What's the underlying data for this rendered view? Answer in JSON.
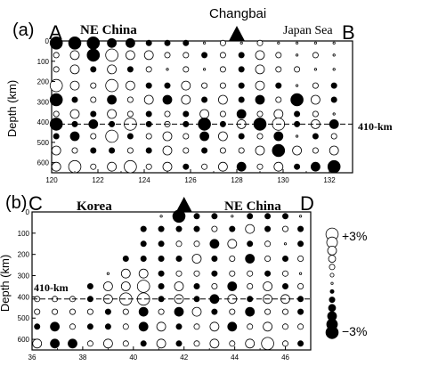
{
  "figure": {
    "colors": {
      "high": "#ffffff",
      "low": "#000000",
      "frame": "#000000",
      "ref_line": "#333333"
    }
  },
  "chart_data": [
    {
      "type": "scatter",
      "panel_label": "(a)",
      "start_label": "A",
      "end_label": "B",
      "region_labels": [
        "NE China",
        "Japan Sea"
      ],
      "volcano_label": "Changbai",
      "volcano_x": 128,
      "ylabel": "Depth (km)",
      "xlim": [
        120,
        133
      ],
      "ylim": [
        0,
        650
      ],
      "xticks": [
        "120",
        "122",
        "124",
        "126",
        "128",
        "130",
        "132"
      ],
      "xtick_values": [
        120,
        122,
        124,
        126,
        128,
        130,
        132
      ],
      "yticks": [
        "0",
        "100",
        "200",
        "300",
        "400",
        "500",
        "600"
      ],
      "ytick_values": [
        0,
        100,
        200,
        300,
        400,
        500,
        600
      ],
      "ref_line": {
        "depth": 410,
        "label": "410-km"
      },
      "x": [
        120.2,
        121.0,
        121.8,
        122.6,
        123.4,
        124.2,
        125.0,
        125.8,
        126.6,
        127.4,
        128.2,
        129.0,
        129.8,
        130.6,
        131.4,
        132.2
      ],
      "depths": [
        10,
        70,
        140,
        220,
        290,
        360,
        410,
        470,
        540,
        620
      ],
      "values": [
        [
          -3,
          -3,
          -3,
          -2,
          -2,
          -1,
          -1,
          -1,
          0,
          1,
          0,
          1,
          0,
          0,
          0,
          0
        ],
        [
          1,
          2,
          -3,
          3,
          2,
          2,
          1,
          1,
          -1,
          1,
          -1,
          2,
          1,
          0,
          1,
          0
        ],
        [
          1,
          2,
          -1,
          2,
          -1,
          1,
          0,
          1,
          0,
          1,
          -1,
          2,
          1,
          1,
          0,
          0
        ],
        [
          3,
          2,
          1,
          3,
          2,
          -1,
          -1,
          2,
          1,
          1,
          -1,
          2,
          -1,
          0,
          1,
          -1
        ],
        [
          -3,
          -1,
          1,
          -2,
          1,
          2,
          -2,
          2,
          -1,
          2,
          -1,
          -2,
          1,
          -3,
          2,
          -1
        ],
        [
          1,
          2,
          -1,
          2,
          1,
          -1,
          1,
          -1,
          2,
          1,
          -2,
          1,
          2,
          -1,
          1,
          0
        ],
        [
          -3,
          -1,
          -2,
          -1,
          3,
          -1,
          1,
          -1,
          -3,
          -1,
          2,
          -3,
          3,
          -1,
          2,
          -2
        ],
        [
          -1,
          -2,
          1,
          3,
          -1,
          1,
          2,
          1,
          -2,
          2,
          -1,
          1,
          -2,
          0,
          -1,
          1
        ],
        [
          2,
          1,
          -1,
          -1,
          1,
          -1,
          2,
          1,
          -1,
          1,
          1,
          2,
          -3,
          2,
          1,
          2
        ],
        [
          2,
          3,
          1,
          2,
          3,
          1,
          2,
          -1,
          1,
          2,
          -2,
          1,
          2,
          -1,
          -2,
          -3
        ]
      ]
    },
    {
      "type": "scatter",
      "panel_label": "(b)",
      "start_label": "C",
      "end_label": "D",
      "region_labels": [
        "Korea",
        "NE China"
      ],
      "volcano_x": 42,
      "ylabel": "Depth (km)",
      "xlim": [
        36,
        47
      ],
      "ylim": [
        0,
        650
      ],
      "xticks": [
        "36",
        "38",
        "40",
        "42",
        "44",
        "46"
      ],
      "xtick_values": [
        36,
        38,
        40,
        42,
        44,
        46
      ],
      "yticks": [
        "0",
        "100",
        "200",
        "300",
        "400",
        "500",
        "600"
      ],
      "ytick_values": [
        0,
        100,
        200,
        300,
        400,
        500,
        600
      ],
      "ref_line": {
        "depth": 410,
        "label": "410-km"
      },
      "x": [
        36.2,
        36.9,
        37.6,
        38.3,
        39.0,
        39.7,
        40.4,
        41.1,
        41.8,
        42.5,
        43.2,
        43.9,
        44.6,
        45.3,
        46.0,
        46.6
      ],
      "depths": [
        20,
        80,
        150,
        220,
        290,
        350,
        410,
        470,
        540,
        620
      ],
      "values": [
        [
          null,
          null,
          null,
          null,
          null,
          null,
          null,
          0,
          -3,
          -1,
          -1,
          0,
          -1,
          -1,
          -1,
          0
        ],
        [
          null,
          null,
          null,
          null,
          null,
          null,
          -1,
          -1,
          -1,
          -1,
          1,
          -1,
          2,
          -1,
          1,
          -1
        ],
        [
          null,
          null,
          null,
          null,
          null,
          null,
          -1,
          -1,
          1,
          1,
          -2,
          2,
          -1,
          1,
          0,
          -1
        ],
        [
          null,
          null,
          null,
          null,
          null,
          -1,
          -1,
          -1,
          -1,
          2,
          -1,
          1,
          -2,
          1,
          -1,
          1
        ],
        [
          null,
          null,
          null,
          null,
          0,
          2,
          2,
          -1,
          1,
          1,
          -1,
          1,
          1,
          -1,
          1,
          0
        ],
        [
          null,
          null,
          null,
          -1,
          2,
          2,
          3,
          -1,
          2,
          -1,
          1,
          -2,
          1,
          2,
          -1,
          1
        ],
        [
          1,
          1,
          1,
          -1,
          2,
          3,
          3,
          -1,
          2,
          -1,
          -2,
          2,
          -1,
          2,
          2,
          -1
        ],
        [
          1,
          1,
          1,
          1,
          -1,
          1,
          -2,
          1,
          -2,
          2,
          -1,
          1,
          -2,
          1,
          1,
          -1
        ],
        [
          -1,
          -2,
          1,
          -1,
          -1,
          1,
          -2,
          2,
          -1,
          1,
          2,
          -2,
          1,
          2,
          1,
          1
        ],
        [
          2,
          -2,
          -2,
          1,
          2,
          1,
          -1,
          2,
          -1,
          1,
          2,
          1,
          2,
          3,
          1,
          -1
        ]
      ]
    }
  ],
  "legend": {
    "plus_label": "+3%",
    "minus_label": "−3%",
    "values": [
      3,
      2.5,
      2,
      1.5,
      1,
      0.5,
      0,
      -0.5,
      -1,
      -1.5,
      -2,
      -2.5,
      -3
    ]
  }
}
